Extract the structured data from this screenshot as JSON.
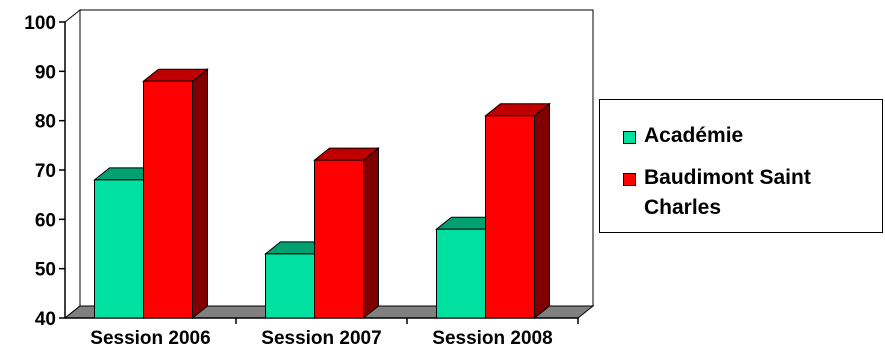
{
  "colors": {
    "academie_front": "#00E0A0",
    "academie_side": "#008060",
    "academie_top": "#00A070",
    "baudimont_front": "#FF0000",
    "baudimont_side": "#800000",
    "baudimont_top": "#C00000",
    "floor": "#808080",
    "wall": "#ffffff"
  },
  "chart_data": {
    "type": "bar",
    "title": "",
    "xlabel": "",
    "ylabel": "",
    "categories": [
      "Session 2006",
      "Session 2007",
      "Session 2008"
    ],
    "series": [
      {
        "name": "Académie",
        "values": [
          68,
          53,
          58
        ]
      },
      {
        "name": "Baudimont Saint Charles",
        "values": [
          88,
          72,
          81
        ]
      }
    ],
    "ylim": [
      40,
      100
    ],
    "yticks": [
      "40",
      "50",
      "60",
      "70",
      "80",
      "90",
      "100"
    ],
    "grid": false,
    "legend_position": "right",
    "three_d": true
  },
  "legend": {
    "items": [
      {
        "lines": [
          "Académie"
        ]
      },
      {
        "lines": [
          "Baudimont Saint",
          "Charles"
        ]
      }
    ]
  }
}
